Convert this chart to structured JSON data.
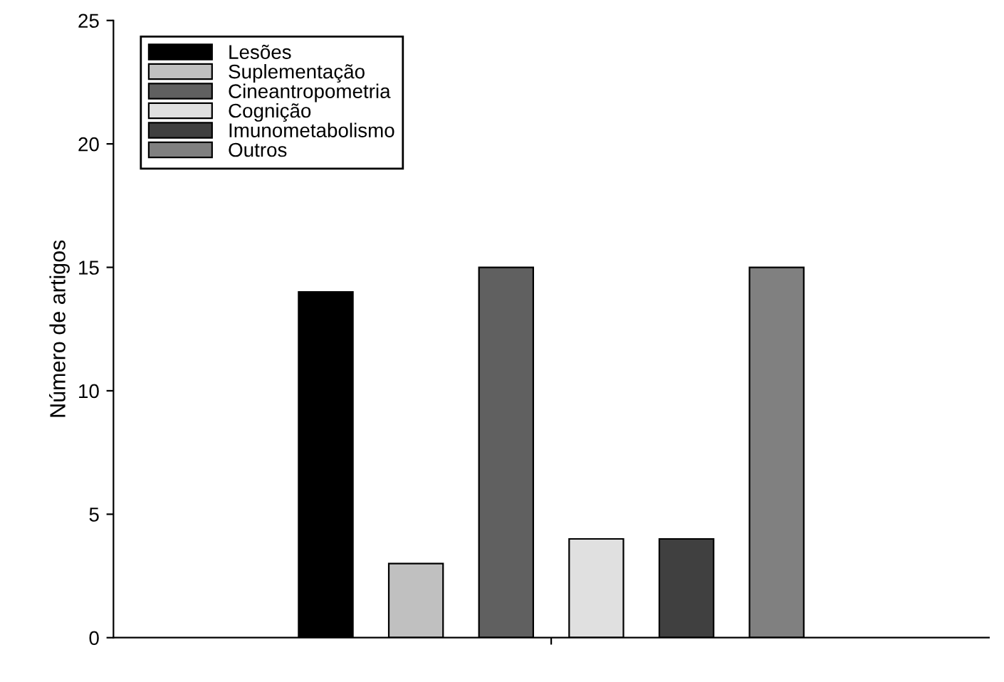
{
  "chart_data": {
    "type": "bar",
    "ylabel": "Número de artigos",
    "categories": [
      null
    ],
    "series": [
      {
        "name": "Lesões",
        "color": "#000000",
        "values": [
          14
        ]
      },
      {
        "name": "Suplementação",
        "color": "#c0c0c0",
        "values": [
          3
        ]
      },
      {
        "name": "Cineantropometria",
        "color": "#606060",
        "values": [
          15
        ]
      },
      {
        "name": "Cognição",
        "color": "#e0e0e0",
        "values": [
          4
        ]
      },
      {
        "name": "Imunometabolismo",
        "color": "#404040",
        "values": [
          4
        ]
      },
      {
        "name": "Outros",
        "color": "#808080",
        "values": [
          15
        ]
      }
    ],
    "ylim": [
      0,
      25
    ],
    "yticks": [
      0,
      5,
      10,
      15,
      20,
      25
    ],
    "legend": "top left",
    "grid": false
  }
}
